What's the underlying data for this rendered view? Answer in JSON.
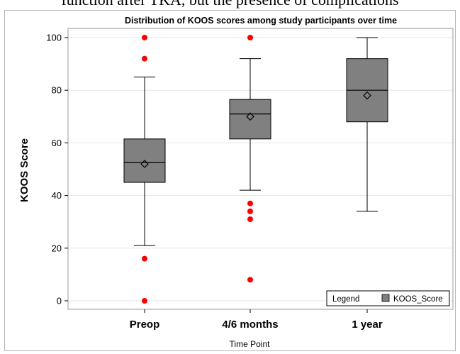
{
  "header_fragment": "function after TKA, but the presence of complications",
  "colors": {
    "box_fill": "#808080",
    "outlier": "#ff0000",
    "grid": "#e6e6e6",
    "frame": "#b5b5b5"
  },
  "chart_data": {
    "type": "box",
    "title": "Distribution of KOOS scores among study participants over time",
    "xlabel": "Time Point",
    "ylabel": "KOOS Score",
    "ylim": [
      0,
      100
    ],
    "yticks": [
      0,
      20,
      40,
      60,
      80,
      100
    ],
    "grid": true,
    "legend": {
      "title": "Legend",
      "entries": [
        "KOOS_Score"
      ],
      "placement": "bottom-right"
    },
    "categories": [
      "Preop",
      "4/6 months",
      "1 year"
    ],
    "boxes": [
      {
        "category": "Preop",
        "whisker_low": 21,
        "q1": 45,
        "median": 52.5,
        "mean": 52,
        "q3": 61.5,
        "whisker_high": 85,
        "outliers": [
          0,
          16,
          92,
          100
        ]
      },
      {
        "category": "4/6 months",
        "whisker_low": 42,
        "q1": 61.5,
        "median": 71,
        "mean": 70,
        "q3": 76.5,
        "whisker_high": 92,
        "outliers": [
          8,
          31,
          34,
          37,
          100
        ]
      },
      {
        "category": "1 year",
        "whisker_low": 34,
        "q1": 68,
        "median": 80,
        "mean": 78,
        "q3": 92,
        "whisker_high": 100,
        "outliers": []
      }
    ]
  }
}
